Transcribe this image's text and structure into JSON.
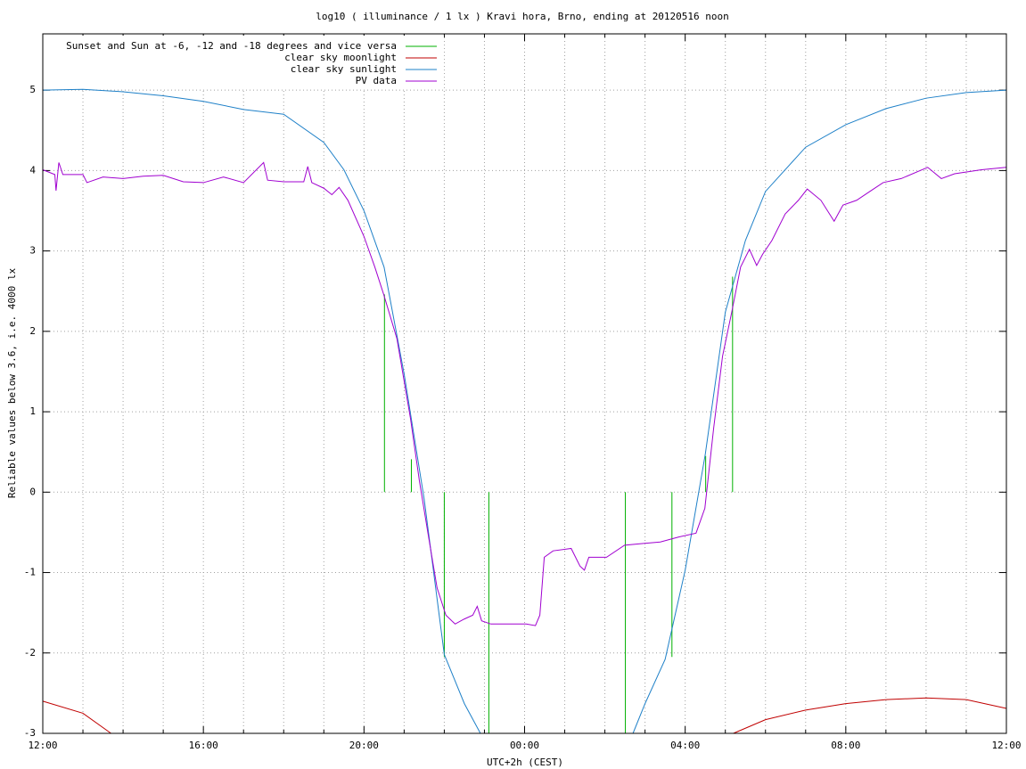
{
  "chart_data": {
    "type": "line",
    "title": "log10 ( illuminance / 1 lx ) Kravi hora, Brno, ending at 20120516 noon",
    "x_label": "UTC+2h (CEST)",
    "y_label": "Reliable values below 3.6, i.e. 4000 lx",
    "xlim": [
      0,
      24
    ],
    "ylim": [
      -3,
      5.7
    ],
    "xticks": [
      {
        "value": 0,
        "label": "12:00"
      },
      {
        "value": 4,
        "label": "16:00"
      },
      {
        "value": 8,
        "label": "20:00"
      },
      {
        "value": 12,
        "label": "00:00"
      },
      {
        "value": 16,
        "label": "04:00"
      },
      {
        "value": 20,
        "label": "08:00"
      },
      {
        "value": 24,
        "label": "12:00"
      }
    ],
    "xminorticks": [
      1,
      2,
      3,
      5,
      6,
      7,
      9,
      10,
      11,
      13,
      14,
      15,
      17,
      18,
      19,
      21,
      22,
      23
    ],
    "yticks": [
      -3,
      -2,
      -1,
      0,
      1,
      2,
      3,
      4,
      5
    ],
    "grid": true,
    "legend": "top-left",
    "series": [
      {
        "name": "Sunset and Sun at -6, -12 and -18 degrees and vice versa",
        "color": "#00b000",
        "x": [
          8.51,
          8.51,
          null,
          9.18,
          9.18,
          null,
          10.0,
          10.0,
          null,
          11.11,
          11.11,
          null,
          14.51,
          14.51,
          null,
          15.67,
          15.67,
          null,
          16.51,
          16.51,
          null,
          17.18,
          17.18
        ],
        "values": [
          0,
          2.46,
          null,
          0,
          0.41,
          null,
          0,
          -2.05,
          null,
          0,
          -3,
          null,
          0,
          -3,
          null,
          0,
          -2.05,
          null,
          0,
          0.45,
          null,
          0,
          2.68
        ]
      },
      {
        "name": "clear sky moonlight",
        "color": "#c00000",
        "x": [
          0,
          1,
          1.7,
          null,
          17.2,
          18,
          19,
          20,
          21,
          22,
          23,
          24
        ],
        "values": [
          -2.6,
          -2.75,
          -3,
          null,
          -3,
          -2.83,
          -2.71,
          -2.63,
          -2.58,
          -2.56,
          -2.58,
          -2.69
        ]
      },
      {
        "name": "clear sky sunlight",
        "color": "#1e80c8",
        "x": [
          0,
          1,
          2,
          3,
          4,
          5,
          6,
          7,
          7.5,
          8,
          8.5,
          9,
          9.5,
          10,
          10.5,
          10.9,
          null,
          14.7,
          15,
          15.5,
          16,
          16.5,
          17,
          17.5,
          18,
          19,
          20,
          21,
          22,
          23,
          24
        ],
        "values": [
          5.0,
          5.01,
          4.98,
          4.93,
          4.86,
          4.76,
          4.7,
          4.35,
          4.01,
          3.5,
          2.8,
          1.47,
          -0.09,
          -2.02,
          -2.63,
          -3,
          null,
          -3,
          -2.63,
          -2.08,
          -0.97,
          0.47,
          2.24,
          3.13,
          3.74,
          4.29,
          4.57,
          4.77,
          4.9,
          4.97,
          5.0
        ]
      },
      {
        "name": "PV data",
        "color": "#a000d0",
        "x": [
          0,
          0.3,
          0.33,
          0.4,
          0.5,
          1,
          1.1,
          1.5,
          2,
          2.5,
          3,
          3.5,
          4,
          4.5,
          5,
          5.5,
          5.6,
          6,
          6.5,
          6.6,
          6.7,
          7,
          7.2,
          7.38,
          7.6,
          8.0,
          8.27,
          8.49,
          8.82,
          9.16,
          9.38,
          9.6,
          9.82,
          10.04,
          10.27,
          10.49,
          10.71,
          10.82,
          10.93,
          11.16,
          11.6,
          12.04,
          12.27,
          12.38,
          12.49,
          12.71,
          13.16,
          13.38,
          13.49,
          13.6,
          14.04,
          14.49,
          14.93,
          15.38,
          15.82,
          16.27,
          16.49,
          16.71,
          16.93,
          17.16,
          17.38,
          17.6,
          17.78,
          17.93,
          18.16,
          18.49,
          18.82,
          19.04,
          19.38,
          19.71,
          19.93,
          20.27,
          20.6,
          20.93,
          21.38,
          22.04,
          22.38,
          22.71,
          23.38,
          24
        ],
        "values": [
          4.01,
          3.95,
          3.75,
          4.1,
          3.95,
          3.95,
          3.85,
          3.92,
          3.9,
          3.93,
          3.94,
          3.86,
          3.85,
          3.92,
          3.85,
          4.1,
          3.88,
          3.86,
          3.86,
          4.05,
          3.85,
          3.78,
          3.7,
          3.79,
          3.63,
          3.18,
          2.8,
          2.46,
          1.91,
          0.91,
          0.14,
          -0.53,
          -1.19,
          -1.53,
          -1.64,
          -1.58,
          -1.53,
          -1.42,
          -1.6,
          -1.64,
          -1.64,
          -1.64,
          -1.66,
          -1.53,
          -0.81,
          -0.73,
          -0.7,
          -0.92,
          -0.97,
          -0.81,
          -0.81,
          -0.66,
          -0.64,
          -0.62,
          -0.56,
          -0.51,
          -0.2,
          0.8,
          1.69,
          2.24,
          2.8,
          3.02,
          2.82,
          2.96,
          3.13,
          3.46,
          3.63,
          3.77,
          3.63,
          3.37,
          3.57,
          3.63,
          3.74,
          3.85,
          3.9,
          4.04,
          3.9,
          3.96,
          4.01,
          4.04
        ]
      }
    ]
  }
}
